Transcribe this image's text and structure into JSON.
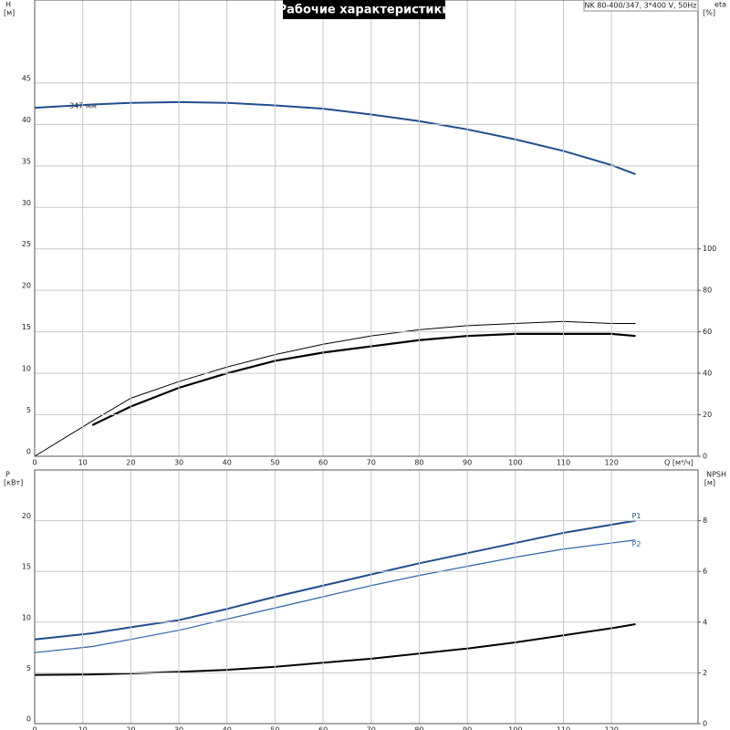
{
  "title": "Рабочие характеристики",
  "info": "NK 80-400/347, 3*400 V, 50Hz",
  "chart_data": [
    {
      "type": "line",
      "ylabel": "H",
      "yunit": "[м]",
      "y2label": "eta",
      "y2unit": "[%]",
      "xlabel": "Q [м³/ч]",
      "x": [
        0,
        12,
        20,
        30,
        40,
        50,
        60,
        70,
        80,
        90,
        100,
        110,
        120,
        125
      ],
      "xlim": [
        0,
        138
      ],
      "xticks": [
        0,
        10,
        20,
        30,
        40,
        50,
        60,
        70,
        80,
        90,
        100,
        110,
        120
      ],
      "ylim": [
        0,
        55
      ],
      "yticks": [
        0,
        5,
        10,
        15,
        20,
        25,
        30,
        35,
        40,
        45
      ],
      "y2lim": [
        0,
        220
      ],
      "y2ticks": [
        0,
        20,
        40,
        60,
        80,
        100
      ],
      "grid": true,
      "series": [
        {
          "name": "347 мм",
          "color": "#1f4e8c",
          "line_width": 2,
          "label_position": "start",
          "values": [
            42.0,
            42.4,
            42.6,
            42.7,
            42.6,
            42.3,
            41.9,
            41.2,
            40.4,
            39.4,
            38.2,
            36.8,
            35.1,
            34.0
          ]
        },
        {
          "color": "#000000",
          "line_width": 1,
          "axis": "y2",
          "values": [
            0,
            17,
            28,
            36,
            43,
            49,
            54,
            58,
            61,
            63,
            64,
            65,
            64,
            64
          ]
        },
        {
          "color": "#000000",
          "line_width": 2.2,
          "axis": "y2",
          "values": [
            null,
            15,
            24,
            33,
            40,
            46,
            50,
            53,
            56,
            58,
            59,
            59,
            59,
            58
          ]
        }
      ]
    },
    {
      "type": "line",
      "ylabel": "P",
      "yunit": "[кВт]",
      "y2label": "NPSH",
      "y2unit": "[м]",
      "x": [
        0,
        12,
        20,
        30,
        40,
        50,
        60,
        70,
        80,
        90,
        100,
        110,
        120,
        125
      ],
      "xlim": [
        0,
        138
      ],
      "xticks": [
        0,
        10,
        20,
        30,
        40,
        50,
        60,
        70,
        80,
        90,
        100,
        110,
        120
      ],
      "ylim": [
        0,
        25
      ],
      "yticks": [
        0,
        5,
        10,
        15,
        20
      ],
      "y2lim": [
        0,
        10
      ],
      "y2ticks": [
        0,
        2,
        4,
        6,
        8
      ],
      "grid": true,
      "series": [
        {
          "name": "P1",
          "color": "#1f4e8c",
          "line_width": 2,
          "label_position": "end",
          "values": [
            8.3,
            8.9,
            9.5,
            10.2,
            11.3,
            12.5,
            13.6,
            14.7,
            15.8,
            16.8,
            17.8,
            18.8,
            19.6,
            20.0
          ]
        },
        {
          "name": "P2",
          "color": "#2f63a8",
          "line_width": 1.2,
          "label_position": "end",
          "values": [
            7.0,
            7.6,
            8.3,
            9.2,
            10.3,
            11.4,
            12.5,
            13.6,
            14.6,
            15.5,
            16.4,
            17.2,
            17.8,
            18.1
          ]
        },
        {
          "color": "#000000",
          "line_width": 2,
          "axis": "y2",
          "values": [
            1.92,
            1.94,
            1.98,
            2.04,
            2.12,
            2.24,
            2.4,
            2.56,
            2.76,
            2.96,
            3.2,
            3.48,
            3.76,
            3.92
          ]
        }
      ]
    }
  ]
}
